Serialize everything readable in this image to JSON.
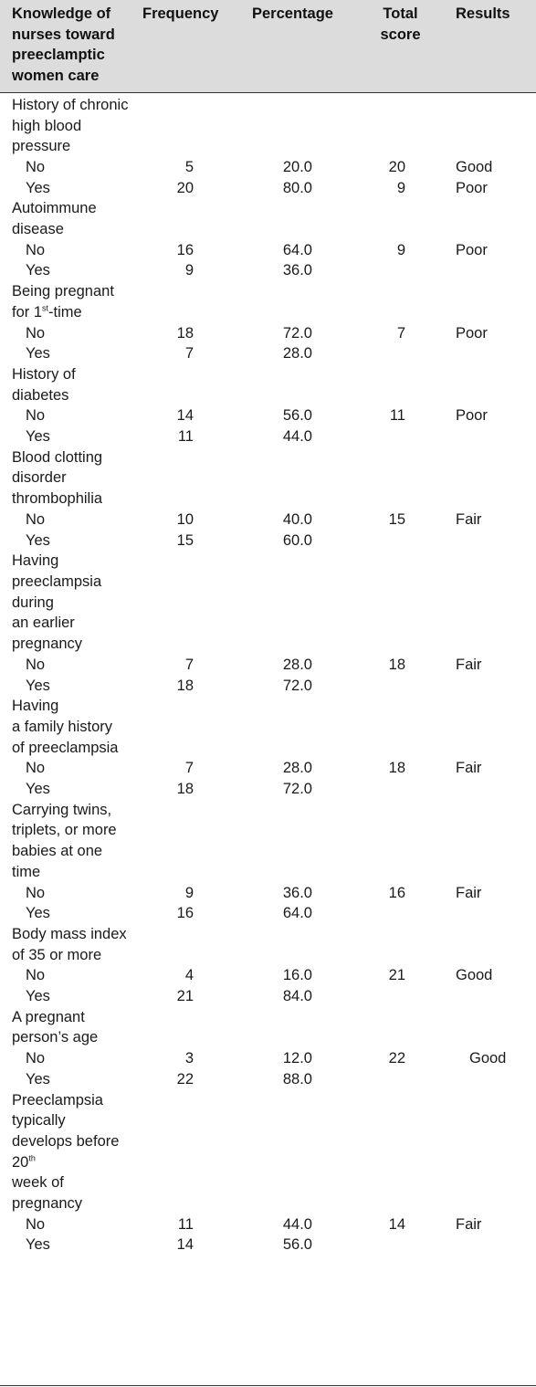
{
  "headers": {
    "knowledge": "Knowledge of nurses toward preeclamptic women care",
    "frequency": "Frequency",
    "percentage": "Percentage",
    "total_score": "Total score",
    "results": "Results"
  },
  "groups": [
    {
      "label_html": "History of chronic<br>high blood pressure",
      "rows": [
        {
          "answer": "No",
          "frequency": "5",
          "percentage": "20.0",
          "total_score": "20",
          "result": "Good"
        },
        {
          "answer": "Yes",
          "frequency": "20",
          "percentage": "80.0",
          "total_score": "9",
          "result": "Poor"
        }
      ]
    },
    {
      "label_html": "Autoimmune disease",
      "rows": [
        {
          "answer": "No",
          "frequency": "16",
          "percentage": "64.0",
          "total_score": "9",
          "result": "Poor"
        },
        {
          "answer": "Yes",
          "frequency": "9",
          "percentage": "36.0",
          "total_score": "",
          "result": ""
        }
      ]
    },
    {
      "label_html": "Being pregnant for 1<sup>st</sup>-time",
      "rows": [
        {
          "answer": "No",
          "frequency": "18",
          "percentage": "72.0",
          "total_score": "7",
          "result": "Poor"
        },
        {
          "answer": "Yes",
          "frequency": "7",
          "percentage": "28.0",
          "total_score": "",
          "result": ""
        }
      ]
    },
    {
      "label_html": "History of diabetes",
      "rows": [
        {
          "answer": "No",
          "frequency": "14",
          "percentage": "56.0",
          "total_score": "11",
          "result": "Poor"
        },
        {
          "answer": "Yes",
          "frequency": "11",
          "percentage": "44.0",
          "total_score": "",
          "result": ""
        }
      ]
    },
    {
      "label_html": "Blood clotting disorder thrombophilia",
      "rows": [
        {
          "answer": "No",
          "frequency": "10",
          "percentage": "40.0",
          "total_score": "15",
          "result": "Fair"
        },
        {
          "answer": "Yes",
          "frequency": "15",
          "percentage": "60.0",
          "total_score": "",
          "result": ""
        }
      ]
    },
    {
      "label_html": "Having preeclampsia during<br>an earlier pregnancy",
      "rows": [
        {
          "answer": "No",
          "frequency": "7",
          "percentage": "28.0",
          "total_score": "18",
          "result": "Fair"
        },
        {
          "answer": "Yes",
          "frequency": "18",
          "percentage": "72.0",
          "total_score": "",
          "result": ""
        }
      ]
    },
    {
      "label_html": "Having<br>a family history of preeclampsia",
      "rows": [
        {
          "answer": "No",
          "frequency": "7",
          "percentage": "28.0",
          "total_score": "18",
          "result": "Fair"
        },
        {
          "answer": "Yes",
          "frequency": "18",
          "percentage": "72.0",
          "total_score": "",
          "result": ""
        }
      ]
    },
    {
      "label_html": "Carrying twins, triplets, or more babies at one time",
      "rows": [
        {
          "answer": "No",
          "frequency": "9",
          "percentage": "36.0",
          "total_score": "16",
          "result": "Fair"
        },
        {
          "answer": "Yes",
          "frequency": "16",
          "percentage": "64.0",
          "total_score": "",
          "result": ""
        }
      ]
    },
    {
      "label_html": "Body mass index of 35 or more",
      "rows": [
        {
          "answer": "No",
          "frequency": "4",
          "percentage": "16.0",
          "total_score": "21",
          "result": "Good"
        },
        {
          "answer": "Yes",
          "frequency": "21",
          "percentage": "84.0",
          "total_score": "",
          "result": ""
        }
      ]
    },
    {
      "label_html": "A pregnant person’s age",
      "rows": [
        {
          "answer": "No",
          "frequency": "3",
          "percentage": "12.0",
          "total_score": "22",
          "result": "Good",
          "result_indent": true
        },
        {
          "answer": "Yes",
          "frequency": "22",
          "percentage": "88.0",
          "total_score": "",
          "result": ""
        }
      ]
    },
    {
      "label_html": "Preeclampsia typically develops before 20<sup>th</sup><br>week of pregnancy",
      "rows": [
        {
          "answer": "No",
          "frequency": "11",
          "percentage": "44.0",
          "total_score": "14",
          "result": "Fair"
        },
        {
          "answer": "Yes",
          "frequency": "14",
          "percentage": "56.0",
          "total_score": "",
          "result": ""
        }
      ]
    }
  ]
}
